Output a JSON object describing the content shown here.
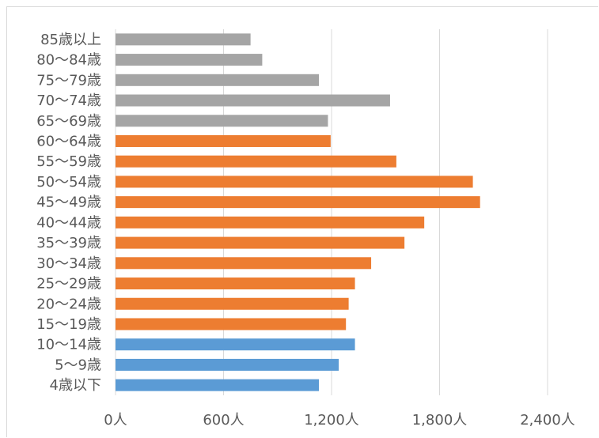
{
  "chart_data": {
    "type": "bar",
    "orientation": "horizontal",
    "title": "",
    "xlabel": "",
    "ylabel": "",
    "categories": [
      "85歳以上",
      "80～84歳",
      "75～79歳",
      "70～74歳",
      "65～69歳",
      "60～64歳",
      "55～59歳",
      "50～54歳",
      "45～49歳",
      "40～44歳",
      "35～39歳",
      "30～34歳",
      "25～29歳",
      "20～24歳",
      "15～19歳",
      "10～14歳",
      "5～9歳",
      "4歳以下"
    ],
    "values": [
      750,
      815,
      1130,
      1525,
      1180,
      1195,
      1560,
      1985,
      2025,
      1715,
      1605,
      1420,
      1330,
      1295,
      1280,
      1330,
      1240,
      1130
    ],
    "bar_colors": [
      "#a5a5a5",
      "#a5a5a5",
      "#a5a5a5",
      "#a5a5a5",
      "#a5a5a5",
      "#ed7d31",
      "#ed7d31",
      "#ed7d31",
      "#ed7d31",
      "#ed7d31",
      "#ed7d31",
      "#ed7d31",
      "#ed7d31",
      "#ed7d31",
      "#ed7d31",
      "#5b9bd5",
      "#5b9bd5",
      "#5b9bd5"
    ],
    "xlim": [
      0,
      2400
    ],
    "xticks": [
      0,
      600,
      1200,
      1800,
      2400
    ],
    "xtick_labels": [
      "0人",
      "600人",
      "1,200人",
      "1,800人",
      "2,400人"
    ],
    "grid": "vertical-major",
    "legend": "none",
    "colors": {
      "gridline": "#d9d9d9",
      "text": "#595959"
    }
  }
}
